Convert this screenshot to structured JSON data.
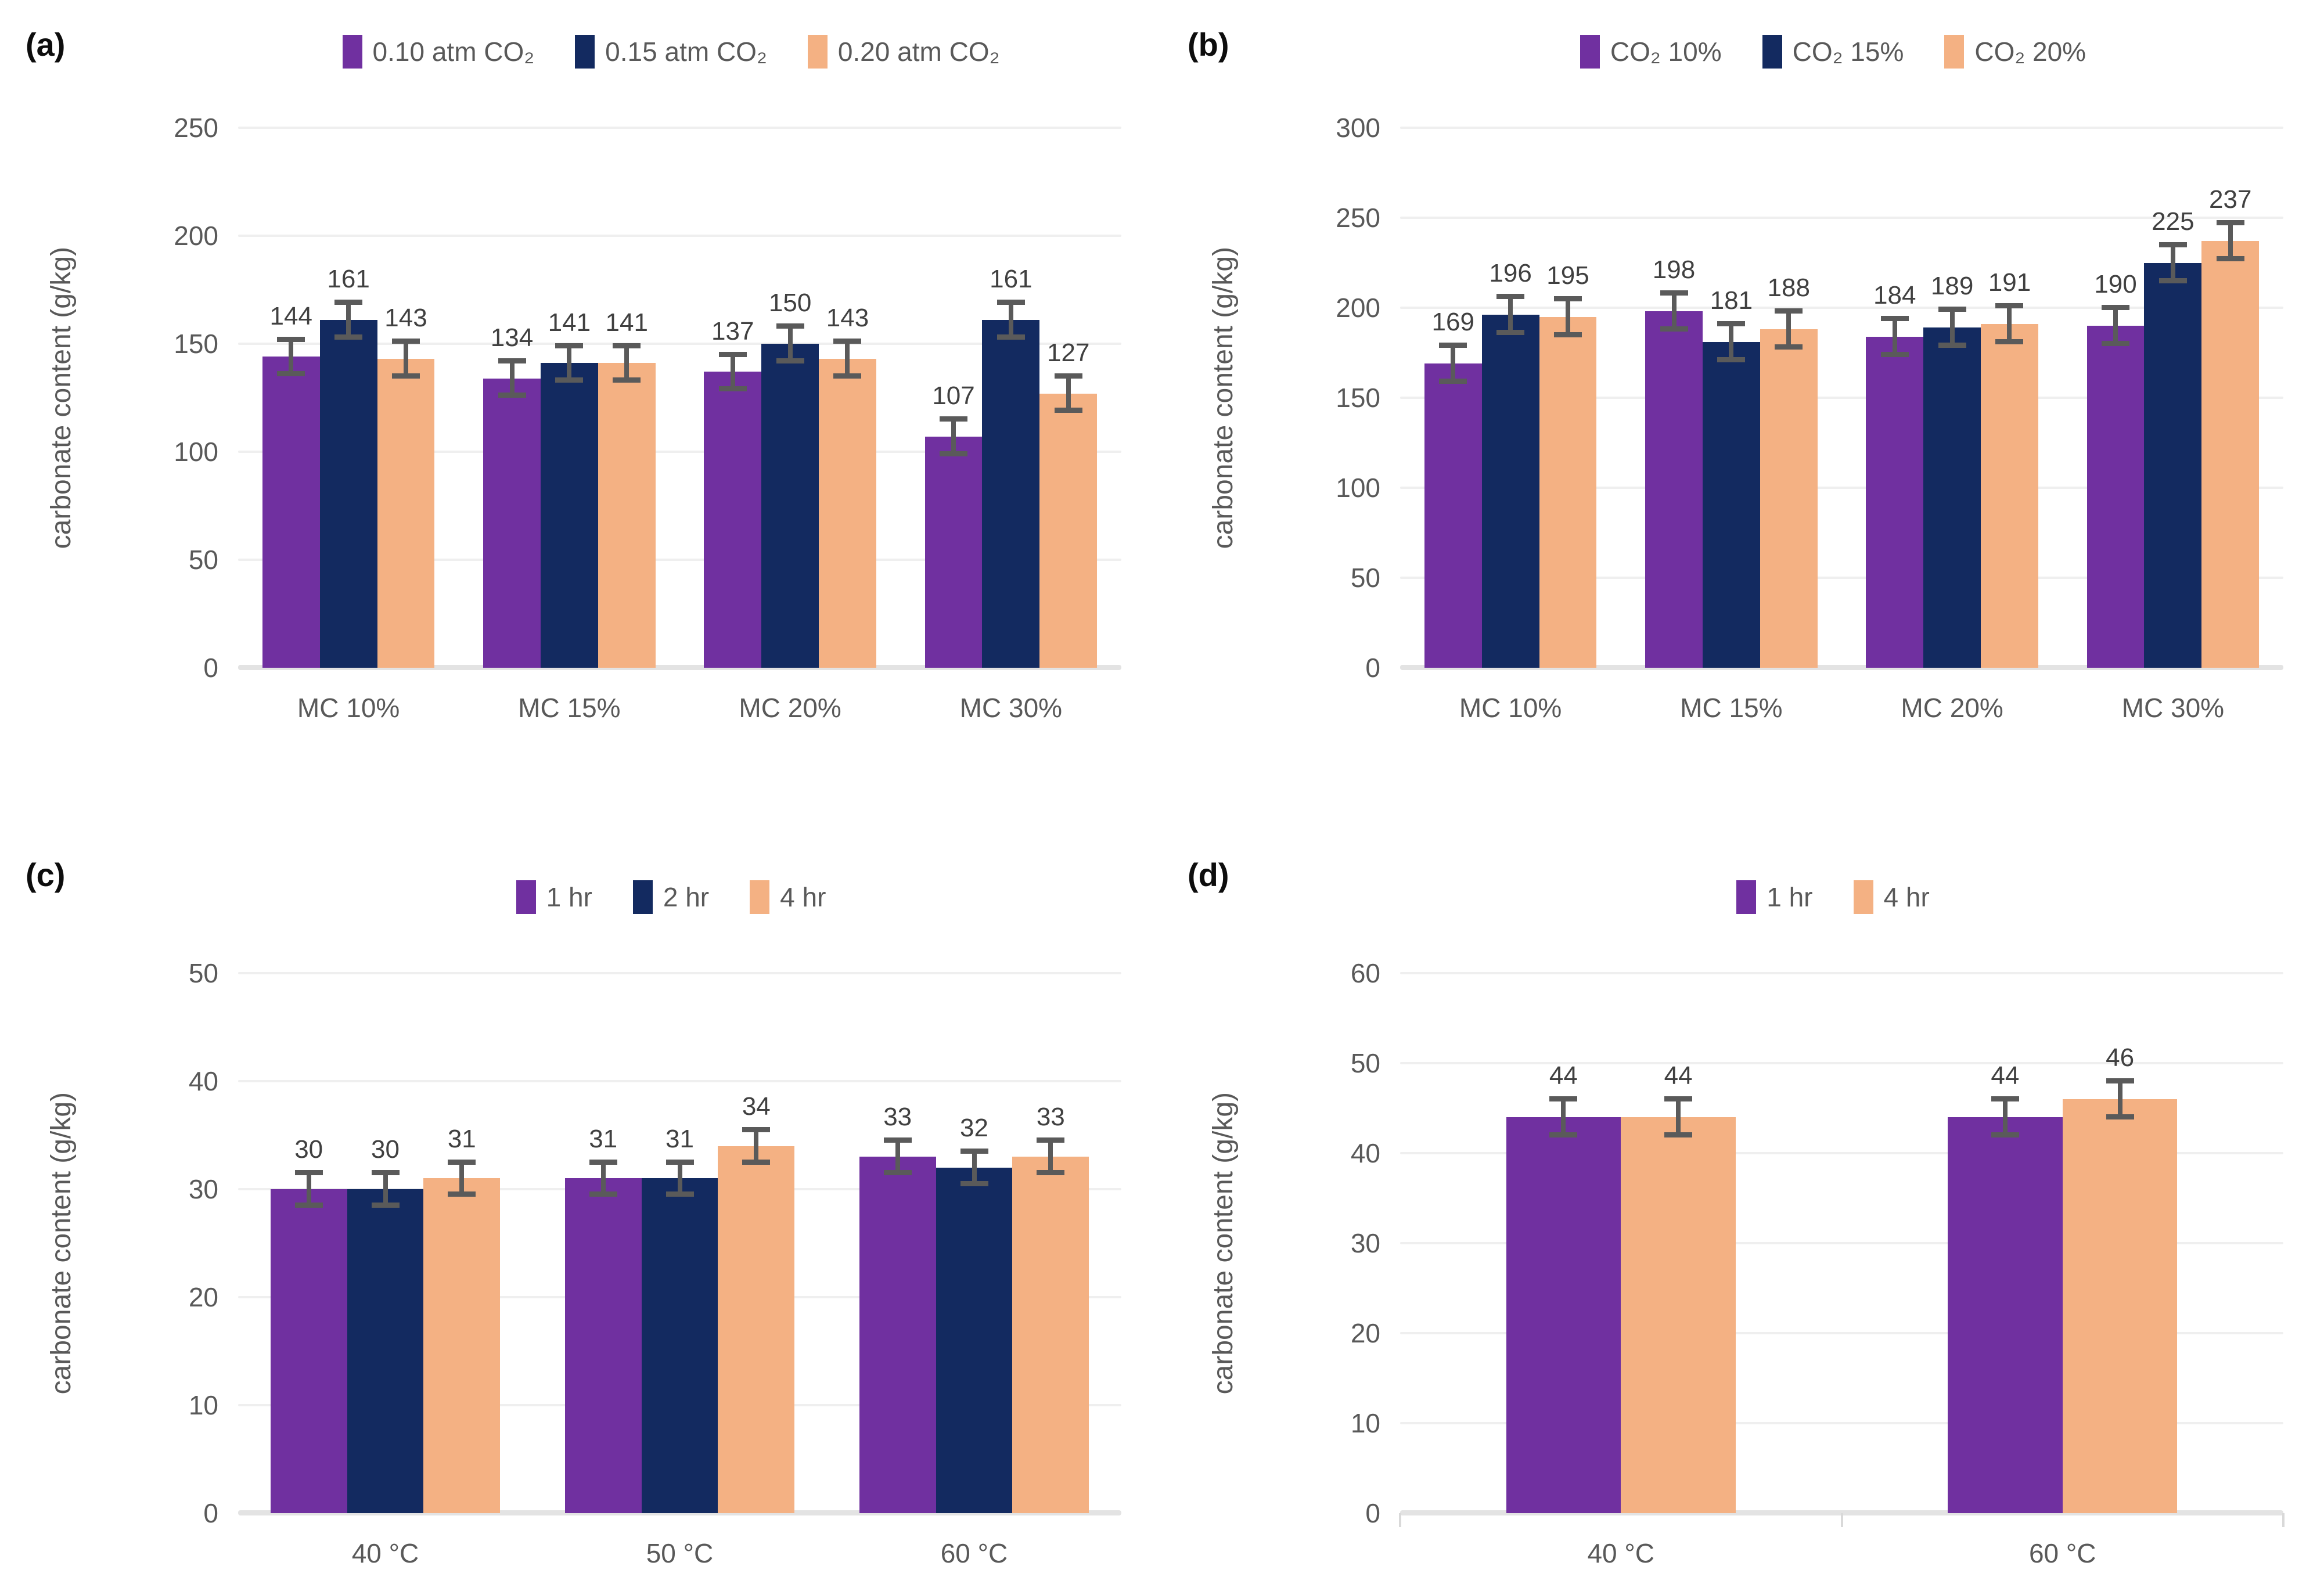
{
  "colors": {
    "purple": "#7030A0",
    "navy": "#132A60",
    "orange": "#F4B183",
    "error_bar": "#5A5A5A",
    "tick_text": "#595959",
    "data_label_text": "#404040",
    "gridline": "#EFEFEF",
    "baseline": "#E3E3E3"
  },
  "chart_data": [
    {
      "type": "bar",
      "panel_label": "(a)",
      "ylabel": "carbonate content (g/kg)",
      "ylim": [
        0,
        250
      ],
      "yticks": [
        0,
        50,
        100,
        150,
        200,
        250
      ],
      "categories": [
        "MC 10%",
        "MC 15%",
        "MC 20%",
        "MC 30%"
      ],
      "series": [
        {
          "name": "0.10 atm CO₂",
          "color_key": "purple",
          "values": [
            144,
            134,
            137,
            107
          ],
          "error": 8
        },
        {
          "name": "0.15 atm CO₂",
          "color_key": "navy",
          "values": [
            161,
            141,
            150,
            161
          ],
          "error": 8
        },
        {
          "name": "0.20 atm CO₂",
          "color_key": "orange",
          "values": [
            143,
            141,
            143,
            127
          ],
          "error": 8
        }
      ],
      "grid": true,
      "legend_position": "top",
      "data_labels": true,
      "axis_edge_ticks": false
    },
    {
      "type": "bar",
      "panel_label": "(b)",
      "ylabel": "carbonate content (g/kg)",
      "ylim": [
        0,
        300
      ],
      "yticks": [
        0,
        50,
        100,
        150,
        200,
        250,
        300
      ],
      "categories": [
        "MC 10%",
        "MC 15%",
        "MC 20%",
        "MC 30%"
      ],
      "series": [
        {
          "name": "CO₂ 10%",
          "color_key": "purple",
          "values": [
            169,
            198,
            184,
            190
          ],
          "error": 10
        },
        {
          "name": "CO₂ 15%",
          "color_key": "navy",
          "values": [
            196,
            181,
            189,
            225
          ],
          "error": 10
        },
        {
          "name": "CO₂ 20%",
          "color_key": "orange",
          "values": [
            195,
            188,
            191,
            237
          ],
          "error": 10
        }
      ],
      "grid": true,
      "legend_position": "top",
      "data_labels": true,
      "axis_edge_ticks": false
    },
    {
      "type": "bar",
      "panel_label": "(c)",
      "ylabel": "carbonate content (g/kg)",
      "ylim": [
        0,
        50
      ],
      "yticks": [
        0,
        10,
        20,
        30,
        40,
        50
      ],
      "categories": [
        "40 °C",
        "50 °C",
        "60 °C"
      ],
      "series": [
        {
          "name": "1 hr",
          "color_key": "purple",
          "values": [
            30,
            31,
            33
          ],
          "error": 1.5
        },
        {
          "name": "2 hr",
          "color_key": "navy",
          "values": [
            30,
            31,
            32
          ],
          "error": 1.5
        },
        {
          "name": "4 hr",
          "color_key": "orange",
          "values": [
            31,
            34,
            33
          ],
          "error": 1.5
        }
      ],
      "grid": true,
      "legend_position": "top",
      "data_labels": true,
      "axis_edge_ticks": false
    },
    {
      "type": "bar",
      "panel_label": "(d)",
      "ylabel": "carbonate content (g/kg)",
      "ylim": [
        0,
        60
      ],
      "yticks": [
        0,
        10,
        20,
        30,
        40,
        50,
        60
      ],
      "categories": [
        "40 °C",
        "60 °C"
      ],
      "series": [
        {
          "name": "1 hr",
          "color_key": "purple",
          "values": [
            44,
            44
          ],
          "error": 2
        },
        {
          "name": "4 hr",
          "color_key": "orange",
          "values": [
            44,
            46
          ],
          "error": 2
        }
      ],
      "grid": true,
      "legend_position": "top",
      "data_labels": true,
      "axis_edge_ticks": true
    }
  ]
}
